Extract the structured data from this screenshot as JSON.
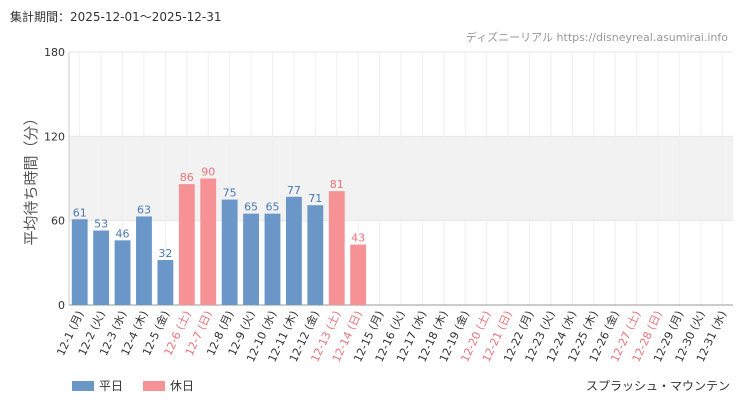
{
  "header": {
    "period": "集計期間：2025-12-01～2025-12-31",
    "source": "ディズニーリアル https://disneyreal.asumirai.info"
  },
  "footer": {
    "attraction": "スプラッシュ・マウンテン"
  },
  "colors": {
    "weekday": "#6a97c7",
    "holiday": "#f69195",
    "weekday_label": "#4a79b0",
    "holiday_label": "#e8737a",
    "grid": "#e6e6e6",
    "band": "#f2f2f2"
  },
  "chart_data": {
    "type": "bar",
    "ylabel": "平均待ち時間（分）",
    "ylim": [
      0,
      180
    ],
    "yticks": [
      0,
      60,
      120,
      180
    ],
    "shaded_band": [
      60,
      120
    ],
    "grid": true,
    "legend_position": "bottom-left",
    "series": [
      {
        "name": "平日",
        "color": "#6a97c7"
      },
      {
        "name": "休日",
        "color": "#f69195"
      }
    ],
    "categories": [
      "12-1 (月)",
      "12-2 (火)",
      "12-3 (水)",
      "12-4 (木)",
      "12-5 (金)",
      "12-6 (土)",
      "12-7 (日)",
      "12-8 (月)",
      "12-9 (火)",
      "12-10 (水)",
      "12-11 (木)",
      "12-12 (金)",
      "12-13 (土)",
      "12-14 (日)",
      "12-15 (月)",
      "12-16 (火)",
      "12-17 (水)",
      "12-18 (木)",
      "12-19 (金)",
      "12-20 (土)",
      "12-21 (日)",
      "12-22 (月)",
      "12-23 (火)",
      "12-24 (水)",
      "12-25 (木)",
      "12-26 (金)",
      "12-27 (土)",
      "12-28 (日)",
      "12-29 (月)",
      "12-30 (火)",
      "12-31 (水)"
    ],
    "values": [
      61,
      53,
      46,
      63,
      32,
      86,
      90,
      75,
      65,
      65,
      77,
      71,
      81,
      43,
      null,
      null,
      null,
      null,
      null,
      null,
      null,
      null,
      null,
      null,
      null,
      null,
      null,
      null,
      null,
      null,
      null
    ],
    "is_holiday": [
      false,
      false,
      false,
      false,
      false,
      true,
      true,
      false,
      false,
      false,
      false,
      false,
      true,
      true,
      false,
      false,
      false,
      false,
      false,
      true,
      true,
      false,
      false,
      false,
      false,
      false,
      true,
      true,
      false,
      false,
      false
    ]
  }
}
